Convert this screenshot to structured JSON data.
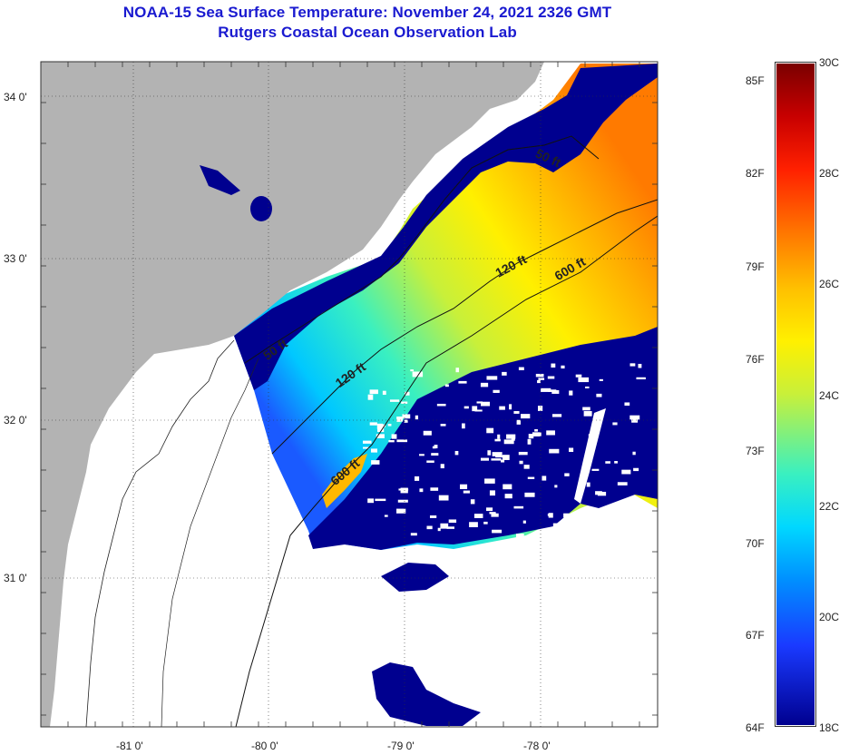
{
  "title": {
    "line1": "NOAA-15 Sea Surface Temperature:  November 24, 2021 2326 GMT",
    "line2": "Rutgers Coastal Ocean Observation Lab"
  },
  "map": {
    "lat_labels": [
      "34 0'",
      "33 0'",
      "32 0'",
      "31 0'"
    ],
    "lon_labels": [
      "-81 0'",
      "-80 0'",
      "-79 0'",
      "-78 0'"
    ],
    "isobaths": [
      "50 ft",
      "50 ft",
      "120 ft",
      "120 ft",
      "600 ft",
      "600 ft"
    ],
    "colors": {
      "land": "#b3b3b3",
      "no_data": "#ffffff",
      "cold": "#00008f",
      "warm": "#ff8c00"
    }
  },
  "colorbar": {
    "fahrenheit": [
      "85F",
      "82F",
      "79F",
      "76F",
      "73F",
      "70F",
      "67F",
      "64F"
    ],
    "celsius": [
      "30C",
      "28C",
      "26C",
      "24C",
      "22C",
      "20C",
      "18C"
    ]
  }
}
